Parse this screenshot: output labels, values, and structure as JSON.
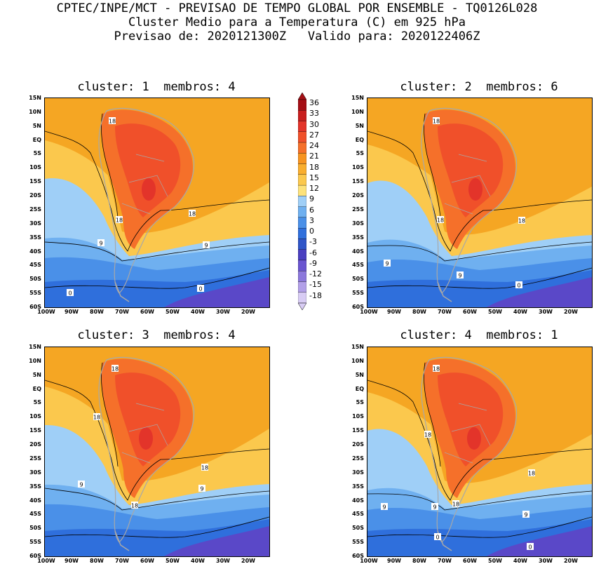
{
  "header": {
    "line1": "CPTEC/INPE/MCT - PREVISAO DE TEMPO GLOBAL POR ENSEMBLE - TQ0126L028",
    "line2": "Cluster Medio para a Temperatura (C) em 925 hPa",
    "line3": "Previsao de: 2020121300Z   Valido para: 2020122406Z"
  },
  "panels": [
    {
      "title": "cluster: 1  membros: 4",
      "contour_labels": [
        "18",
        "18",
        "18",
        "9",
        "9",
        "0",
        "0"
      ]
    },
    {
      "title": "cluster: 2  membros: 6",
      "contour_labels": [
        "18",
        "18",
        "18",
        "9",
        "9",
        "0"
      ]
    },
    {
      "title": "cluster: 3  membros: 4",
      "contour_labels": [
        "18",
        "18",
        "18",
        "18",
        "9",
        "9"
      ]
    },
    {
      "title": "cluster: 4  membros: 1",
      "contour_labels": [
        "18",
        "18",
        "18",
        "18",
        "9",
        "9",
        "9",
        "0",
        "0"
      ]
    }
  ],
  "axes": {
    "lat_ticks": [
      "15N",
      "10N",
      "5N",
      "EQ",
      "5S",
      "10S",
      "15S",
      "20S",
      "25S",
      "30S",
      "35S",
      "40S",
      "45S",
      "50S",
      "55S",
      "60S"
    ],
    "lon_ticks": [
      "100W",
      "90W",
      "80W",
      "70W",
      "60W",
      "50W",
      "40W",
      "30W",
      "20W"
    ]
  },
  "colorbar": {
    "levels": [
      "36",
      "33",
      "30",
      "27",
      "24",
      "21",
      "18",
      "15",
      "12",
      "9",
      "6",
      "3",
      "0",
      "-3",
      "-6",
      "-9",
      "-12",
      "-15",
      "-18"
    ],
    "colors": [
      "#a50f15",
      "#c81e1e",
      "#e3342a",
      "#f0502a",
      "#f5702a",
      "#f79420",
      "#f9ae2e",
      "#fbc84d",
      "#fde27a",
      "#9fcff7",
      "#6fb0f0",
      "#4a90e8",
      "#2f6fdc",
      "#2f55c8",
      "#4a3fc0",
      "#6a55d0",
      "#8c78dc",
      "#b2a0e8",
      "#d8ccf4"
    ]
  },
  "palette": {
    "sea_warm": "#f5a623",
    "subtropical": "#fbc84d",
    "light_blue": "#9fcff7",
    "mid_blue": "#6fb0f0",
    "blue": "#4a90e8",
    "deep_blue": "#2f6fdc",
    "purple": "#5a48c8",
    "land_hot": "#f0502a",
    "land_very_hot": "#e3342a",
    "land_warm": "#f5702a",
    "coast": "#a8a8a8"
  }
}
